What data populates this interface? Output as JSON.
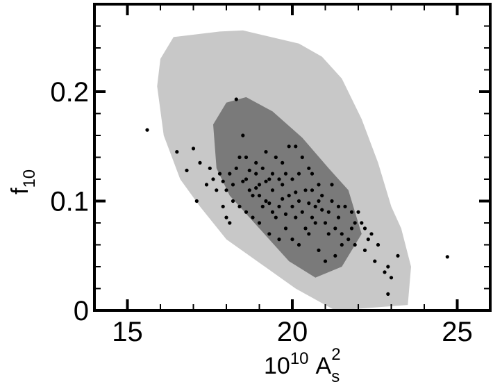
{
  "chart_data": {
    "type": "scatter",
    "xlabel": "10^10 A_s^2",
    "ylabel": "f_10",
    "xlabel_parts": {
      "base": "10",
      "exp": "10",
      "sym": "A",
      "sub": "s",
      "sup": "2"
    },
    "ylabel_parts": {
      "sym": "f",
      "sub": "10"
    },
    "xlim": [
      14,
      26
    ],
    "ylim": [
      0,
      0.28
    ],
    "x_ticks": [
      15,
      20,
      25
    ],
    "x_tick_labels": [
      "15",
      "20",
      "25"
    ],
    "y_ticks": [
      0,
      0.1,
      0.2
    ],
    "y_tick_labels": [
      "0",
      "0.1",
      "0.2"
    ],
    "grid": false,
    "colors": {
      "outer_region": "#c8c8c8",
      "inner_region": "#7a7a7a",
      "points": "#000000"
    },
    "regions": [
      {
        "level": "outer",
        "points": [
          [
            16.4,
            0.25
          ],
          [
            17.8,
            0.255
          ],
          [
            18.5,
            0.256
          ],
          [
            20.2,
            0.244
          ],
          [
            20.9,
            0.232
          ],
          [
            21.5,
            0.212
          ],
          [
            22.1,
            0.175
          ],
          [
            22.6,
            0.135
          ],
          [
            23.0,
            0.095
          ],
          [
            23.3,
            0.075
          ],
          [
            23.6,
            0.04
          ],
          [
            23.5,
            0.005
          ],
          [
            21.3,
            0.0
          ],
          [
            20.1,
            0.02
          ],
          [
            18.0,
            0.065
          ],
          [
            17.2,
            0.095
          ],
          [
            16.6,
            0.12
          ],
          [
            16.1,
            0.16
          ],
          [
            15.9,
            0.205
          ],
          [
            16.0,
            0.23
          ]
        ]
      },
      {
        "level": "inner",
        "points": [
          [
            17.6,
            0.17
          ],
          [
            18.0,
            0.19
          ],
          [
            18.6,
            0.195
          ],
          [
            19.4,
            0.182
          ],
          [
            20.3,
            0.158
          ],
          [
            21.1,
            0.13
          ],
          [
            21.7,
            0.11
          ],
          [
            22.1,
            0.07
          ],
          [
            21.5,
            0.04
          ],
          [
            20.7,
            0.03
          ],
          [
            19.9,
            0.045
          ],
          [
            19.0,
            0.075
          ],
          [
            18.1,
            0.105
          ],
          [
            17.7,
            0.13
          ]
        ]
      }
    ],
    "points": [
      [
        15.6,
        0.165
      ],
      [
        16.5,
        0.145
      ],
      [
        16.8,
        0.128
      ],
      [
        17.0,
        0.148
      ],
      [
        17.2,
        0.135
      ],
      [
        17.1,
        0.1
      ],
      [
        17.5,
        0.13
      ],
      [
        17.6,
        0.12
      ],
      [
        17.8,
        0.125
      ],
      [
        17.9,
        0.095
      ],
      [
        18.0,
        0.085
      ],
      [
        18.1,
        0.08
      ],
      [
        18.2,
        0.115
      ],
      [
        18.3,
        0.13
      ],
      [
        18.4,
        0.14
      ],
      [
        18.5,
        0.16
      ],
      [
        18.3,
        0.193
      ],
      [
        18.6,
        0.12
      ],
      [
        18.7,
        0.11
      ],
      [
        18.8,
        0.105
      ],
      [
        18.9,
        0.125
      ],
      [
        19.0,
        0.115
      ],
      [
        19.1,
        0.13
      ],
      [
        19.2,
        0.1
      ],
      [
        19.3,
        0.12
      ],
      [
        19.4,
        0.11
      ],
      [
        19.5,
        0.14
      ],
      [
        19.6,
        0.095
      ],
      [
        19.7,
        0.115
      ],
      [
        19.8,
        0.125
      ],
      [
        19.9,
        0.105
      ],
      [
        20.0,
        0.12
      ],
      [
        20.1,
        0.15
      ],
      [
        20.2,
        0.1
      ],
      [
        20.3,
        0.09
      ],
      [
        20.4,
        0.11
      ],
      [
        20.5,
        0.13
      ],
      [
        20.6,
        0.085
      ],
      [
        20.7,
        0.095
      ],
      [
        20.8,
        0.115
      ],
      [
        20.9,
        0.105
      ],
      [
        21.0,
        0.08
      ],
      [
        21.1,
        0.09
      ],
      [
        21.2,
        0.1
      ],
      [
        21.3,
        0.075
      ],
      [
        21.4,
        0.085
      ],
      [
        21.5,
        0.07
      ],
      [
        21.6,
        0.095
      ],
      [
        21.7,
        0.065
      ],
      [
        21.8,
        0.075
      ],
      [
        21.9,
        0.06
      ],
      [
        22.0,
        0.09
      ],
      [
        22.2,
        0.055
      ],
      [
        22.3,
        0.065
      ],
      [
        22.4,
        0.07
      ],
      [
        22.5,
        0.045
      ],
      [
        22.6,
        0.06
      ],
      [
        22.8,
        0.035
      ],
      [
        22.9,
        0.04
      ],
      [
        23.0,
        0.03
      ],
      [
        23.2,
        0.05
      ],
      [
        22.9,
        0.015
      ],
      [
        24.7,
        0.049
      ],
      [
        18.6,
        0.14
      ],
      [
        18.9,
        0.135
      ],
      [
        19.2,
        0.145
      ],
      [
        19.4,
        0.125
      ],
      [
        19.7,
        0.135
      ],
      [
        19.9,
        0.15
      ],
      [
        20.3,
        0.14
      ],
      [
        20.6,
        0.125
      ],
      [
        19.1,
        0.095
      ],
      [
        19.5,
        0.085
      ],
      [
        19.8,
        0.075
      ],
      [
        20.0,
        0.065
      ],
      [
        20.2,
        0.06
      ],
      [
        20.5,
        0.07
      ],
      [
        20.8,
        0.055
      ],
      [
        21.0,
        0.045
      ],
      [
        21.3,
        0.05
      ],
      [
        18.0,
        0.11
      ],
      [
        18.2,
        0.1
      ],
      [
        18.4,
        0.095
      ],
      [
        18.6,
        0.09
      ],
      [
        18.8,
        0.085
      ],
      [
        19.0,
        0.08
      ],
      [
        19.3,
        0.07
      ],
      [
        19.6,
        0.065
      ],
      [
        20.1,
        0.085
      ],
      [
        20.4,
        0.075
      ],
      [
        20.7,
        0.08
      ],
      [
        21.1,
        0.07
      ],
      [
        21.5,
        0.06
      ],
      [
        21.8,
        0.09
      ],
      [
        22.1,
        0.08
      ],
      [
        19.0,
        0.105
      ],
      [
        19.6,
        0.12
      ],
      [
        20.2,
        0.125
      ],
      [
        20.8,
        0.1
      ],
      [
        21.2,
        0.115
      ],
      [
        17.4,
        0.115
      ],
      [
        17.7,
        0.11
      ],
      [
        18.1,
        0.125
      ],
      [
        18.5,
        0.118
      ],
      [
        18.9,
        0.112
      ],
      [
        19.3,
        0.098
      ],
      [
        19.7,
        0.102
      ],
      [
        20.1,
        0.108
      ],
      [
        20.5,
        0.098
      ],
      [
        20.9,
        0.092
      ],
      [
        21.4,
        0.095
      ],
      [
        21.9,
        0.08
      ],
      [
        22.2,
        0.075
      ],
      [
        19.4,
        0.09
      ],
      [
        19.8,
        0.088
      ],
      [
        20.6,
        0.11
      ],
      [
        20.0,
        0.095
      ],
      [
        19.2,
        0.118
      ],
      [
        18.7,
        0.128
      ],
      [
        17.9,
        0.118
      ]
    ]
  }
}
